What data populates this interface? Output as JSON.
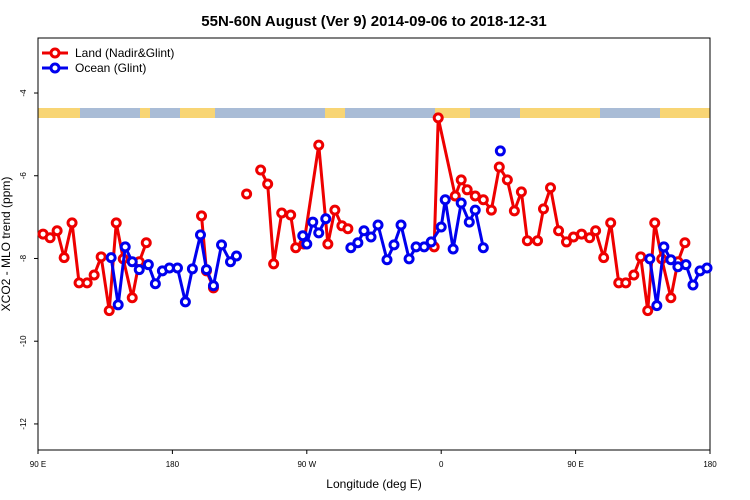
{
  "chart_data": {
    "type": "line",
    "title": "55N-60N August (Ver 9)   2014-09-06 to 2018-12-31",
    "x_label": "Longitude (deg E)",
    "y_label": "XCO2 - MLO trend (ppm)",
    "xlim": [
      90,
      540
    ],
    "xticks": [
      {
        "value": 90,
        "label": "90 E"
      },
      180,
      {
        "value": 270,
        "label": "90 W"
      },
      {
        "value": 360,
        "label": "0"
      },
      {
        "value": 450,
        "label": "90 E"
      },
      {
        "value": 540,
        "label": "180"
      }
    ],
    "ylim": [
      -12.63,
      -2.67
    ],
    "yticks": [
      -4,
      -6,
      -8,
      -10,
      -12
    ],
    "legend": "top-left",
    "series": [
      {
        "name": "Land (Nadir&Glint)",
        "color": "#ee0000",
        "x": [
          93.4,
          98.1,
          102.8,
          107.5,
          112.8,
          117.5,
          122.9,
          127.6,
          132.3,
          137.7,
          142.4,
          147.1,
          153.1,
          157.8,
          162.5,
          null,
          199.5,
          202.8,
          207.5,
          null,
          229.7,
          null,
          239.1,
          243.8,
          247.8,
          253.2,
          259.2,
          262.6,
          268.0,
          278.0,
          284.1,
          288.8,
          293.5,
          297.5,
          null,
          355.3,
          358.0,
          369.4,
          373.4,
          377.4,
          382.8,
          388.2,
          393.6,
          398.9,
          404.3,
          409.0,
          413.7,
          417.7,
          424.5,
          428.5,
          433.2,
          438.6,
          443.9,
          448.6,
          454.0,
          459.4,
          463.4,
          468.8,
          473.5,
          478.9,
          483.6,
          489.0,
          493.6,
          498.3,
          503.0,
          507.7,
          513.8,
          518.5,
          523.2
        ],
        "values": [
          -7.41,
          -7.5,
          -7.33,
          -7.98,
          -7.14,
          -8.59,
          -8.59,
          -8.4,
          -7.96,
          -9.26,
          -7.14,
          -8.01,
          -8.95,
          -8.08,
          -7.62,
          null,
          -6.97,
          -8.3,
          -8.71,
          null,
          -6.44,
          null,
          -5.86,
          -6.2,
          -8.13,
          -6.9,
          -6.95,
          -7.74,
          -7.65,
          -5.26,
          -7.65,
          -6.83,
          -7.21,
          -7.28,
          null,
          -7.72,
          -4.6,
          -6.49,
          -6.1,
          -6.34,
          -6.49,
          -6.58,
          -6.83,
          -5.79,
          -6.1,
          -6.85,
          -6.39,
          -7.57,
          -7.57,
          -6.8,
          -6.29,
          -7.33,
          -7.6,
          -7.48,
          -7.41,
          -7.5,
          -7.33,
          -7.98,
          -7.14,
          -8.59,
          -8.59,
          -8.4,
          -7.96,
          -9.26,
          -7.14,
          -8.01,
          -8.95,
          -8.08,
          -7.62
        ]
      },
      {
        "name": "Ocean (Glint)",
        "color": "#0000ee",
        "x": [
          139.0,
          143.7,
          148.4,
          153.1,
          157.8,
          163.9,
          168.6,
          173.3,
          178.0,
          183.4,
          188.7,
          193.4,
          198.8,
          202.8,
          207.5,
          212.9,
          218.9,
          222.9,
          null,
          267.3,
          270.0,
          274.0,
          278.0,
          282.7,
          null,
          299.5,
          304.2,
          308.3,
          313.0,
          317.7,
          323.7,
          328.4,
          333.1,
          338.5,
          343.2,
          348.6,
          353.3,
          360.0,
          362.7,
          368.0,
          373.4,
          378.8,
          382.8,
          388.2,
          null,
          399.6,
          null,
          499.7,
          504.4,
          509.1,
          513.8,
          518.5,
          523.9,
          528.6,
          533.3,
          538.0
        ],
        "values": [
          -7.98,
          -9.12,
          -7.72,
          -8.08,
          -8.27,
          -8.15,
          -8.61,
          -8.3,
          -8.23,
          -8.23,
          -9.05,
          -8.25,
          -7.43,
          -8.27,
          -8.66,
          -7.67,
          -8.08,
          -7.94,
          null,
          -7.45,
          -7.65,
          -7.12,
          -7.38,
          -7.04,
          null,
          -7.74,
          -7.62,
          -7.33,
          -7.48,
          -7.19,
          -8.03,
          -7.67,
          -7.19,
          -8.01,
          -7.72,
          -7.72,
          -7.6,
          -7.24,
          -6.58,
          -7.77,
          -6.66,
          -7.12,
          -6.83,
          -7.74,
          null,
          -5.4,
          null,
          -8.01,
          -9.14,
          -7.72,
          -8.03,
          -8.2,
          -8.15,
          -8.64,
          -8.3,
          -8.23
        ]
      }
    ]
  }
}
